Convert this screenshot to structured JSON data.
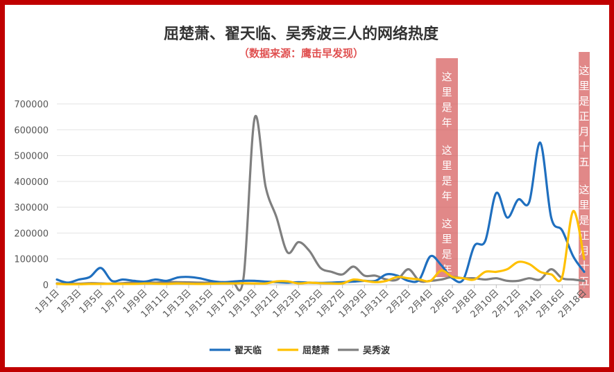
{
  "chart_data": {
    "type": "line",
    "title": "屈楚萧、翟天临、吴秀波三人的网络热度",
    "subtitle": "（数据来源：鹰击早发现）",
    "ylim": [
      0,
      700000
    ],
    "yticks": [
      0,
      100000,
      200000,
      300000,
      400000,
      500000,
      600000,
      700000
    ],
    "grid": true,
    "legend_position": "bottom",
    "x": [
      "1月1日",
      "1月2日",
      "1月3日",
      "1月4日",
      "1月5日",
      "1月6日",
      "1月7日",
      "1月8日",
      "1月9日",
      "1月10日",
      "1月11日",
      "1月12日",
      "1月13日",
      "1月14日",
      "1月15日",
      "1月16日",
      "1月17日",
      "1月18日",
      "1月19日",
      "1月20日",
      "1月21日",
      "1月22日",
      "1月23日",
      "1月24日",
      "1月25日",
      "1月26日",
      "1月27日",
      "1月28日",
      "1月29日",
      "1月30日",
      "1月31日",
      "2月1日",
      "2月2日",
      "2月3日",
      "2月4日",
      "2月5日",
      "2月6日",
      "2月7日",
      "2月8日",
      "2月9日",
      "2月10日",
      "2月11日",
      "2月12日",
      "2月13日",
      "2月14日",
      "2月15日",
      "2月16日",
      "2月17日",
      "2月18日"
    ],
    "x_tick_labels": [
      "1月1日",
      "1月3日",
      "1月5日",
      "1月7日",
      "1月9日",
      "1月11日",
      "1月13日",
      "1月15日",
      "1月17日",
      "1月19日",
      "1月21日",
      "1月23日",
      "1月25日",
      "1月27日",
      "1月29日",
      "1月31日",
      "2月2日",
      "2月4日",
      "2月6日",
      "2月8日",
      "2月10日",
      "2月12日",
      "2月14日",
      "2月16日",
      "2月18日"
    ],
    "series": [
      {
        "name": "翟天临",
        "color": "#1f6fbf",
        "values": [
          20000,
          8000,
          20000,
          30000,
          65000,
          15000,
          20000,
          15000,
          12000,
          20000,
          15000,
          28000,
          30000,
          25000,
          15000,
          10000,
          12000,
          15000,
          15000,
          12000,
          10000,
          8000,
          10000,
          8000,
          7000,
          8000,
          10000,
          12000,
          15000,
          15000,
          40000,
          35000,
          15000,
          20000,
          110000,
          75000,
          25000,
          20000,
          150000,
          170000,
          355000,
          260000,
          330000,
          320000,
          550000,
          260000,
          210000,
          110000,
          50000
        ]
      },
      {
        "name": "屈楚萧",
        "color": "#ffc000",
        "values": [
          3000,
          2000,
          2000,
          3000,
          3000,
          4000,
          3000,
          3000,
          5000,
          4000,
          3000,
          5000,
          4000,
          3000,
          4000,
          5000,
          5000,
          6000,
          5000,
          5000,
          13000,
          13000,
          5000,
          8000,
          6000,
          5000,
          5000,
          20000,
          15000,
          10000,
          15000,
          30000,
          25000,
          20000,
          15000,
          55000,
          30000,
          25000,
          20000,
          50000,
          50000,
          60000,
          88000,
          80000,
          50000,
          40000,
          30000,
          285000,
          100000
        ]
      },
      {
        "name": "吴秀波",
        "color": "#7f7f7f",
        "values": [
          5000,
          4000,
          4000,
          6000,
          5000,
          4000,
          6000,
          8000,
          9000,
          8000,
          10000,
          10000,
          9000,
          8000,
          8000,
          10000,
          10000,
          30000,
          645000,
          380000,
          260000,
          125000,
          165000,
          130000,
          65000,
          50000,
          40000,
          70000,
          35000,
          35000,
          20000,
          20000,
          60000,
          15000,
          15000,
          20000,
          30000,
          25000,
          25000,
          20000,
          25000,
          15000,
          15000,
          25000,
          20000,
          60000,
          25000,
          20000,
          15000
        ]
      }
    ],
    "annotations": [
      {
        "text": "这里是年 这里是年 这里是年",
        "x_range": [
          "2月4日",
          "2月6日"
        ]
      },
      {
        "text": "这里是正月十五 这里是正月十五",
        "x_range": [
          "2月17日",
          "2月18日"
        ]
      }
    ]
  }
}
